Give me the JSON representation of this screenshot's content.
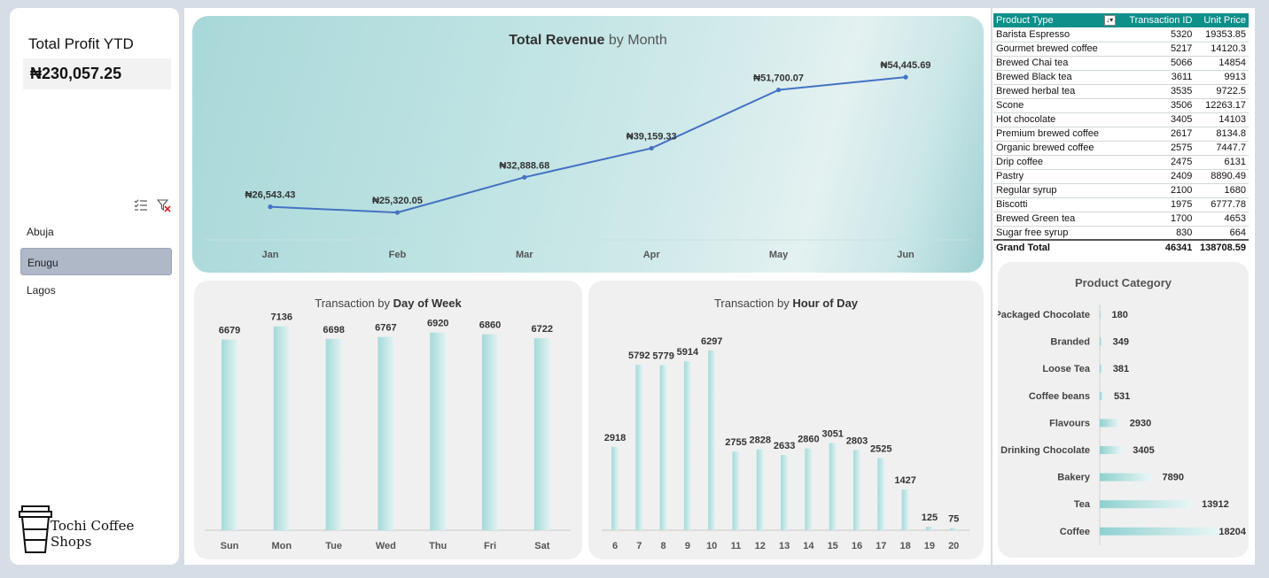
{
  "kpi": {
    "profit_label": "Total Profit YTD",
    "profit_value": "₦230,057.25"
  },
  "slicer": {
    "items": [
      {
        "label": "Abuja",
        "selected": false
      },
      {
        "label": "Enugu",
        "selected": true
      },
      {
        "label": "Lagos",
        "selected": false
      }
    ],
    "multi_select_icon": "multi-select-icon",
    "clear_filter_icon": "clear-filter-icon"
  },
  "brand": {
    "name": "Tochi Coffee Shops",
    "icon": "coffee-cup-icon"
  },
  "colors": {
    "line": "#4472c4",
    "bar": "#a9dcdc",
    "header": "#0f8f8a"
  },
  "chart_data": [
    {
      "type": "line",
      "title_bold": "Total Revenue",
      "title_rest": " by Month",
      "categories": [
        "Jan",
        "Feb",
        "Mar",
        "Apr",
        "May",
        "Jun"
      ],
      "values": [
        26543.43,
        25320.05,
        32888.68,
        39159.33,
        51700.07,
        54445.69
      ],
      "labels": [
        "₦26,543.43",
        "₦25,320.05",
        "₦32,888.68",
        "₦39,159.33",
        "₦51,700.07",
        "₦54,445.69"
      ]
    },
    {
      "type": "bar",
      "title_rest": "Transaction by ",
      "title_bold": "Day of Week",
      "categories": [
        "Sun",
        "Mon",
        "Tue",
        "Wed",
        "Thu",
        "Fri",
        "Sat"
      ],
      "values": [
        6679,
        7136,
        6698,
        6767,
        6920,
        6860,
        6722
      ]
    },
    {
      "type": "bar",
      "title_rest": "Transaction by ",
      "title_bold": "Hour of Day",
      "categories": [
        "6",
        "7",
        "8",
        "9",
        "10",
        "11",
        "12",
        "13",
        "14",
        "15",
        "16",
        "17",
        "18",
        "19",
        "20"
      ],
      "values": [
        2918,
        5792,
        5779,
        5914,
        6297,
        2755,
        2828,
        2633,
        2860,
        3051,
        2803,
        2525,
        1427,
        125,
        75
      ]
    },
    {
      "type": "bar",
      "orientation": "horizontal",
      "title": "Product Category",
      "categories": [
        "Packaged Chocolate",
        "Branded",
        "Loose Tea",
        "Coffee beans",
        "Flavours",
        "Drinking Chocolate",
        "Bakery",
        "Tea",
        "Coffee"
      ],
      "values": [
        180,
        349,
        381,
        531,
        2930,
        3405,
        7890,
        13912,
        18204
      ]
    }
  ],
  "pivot": {
    "headers": [
      "Product Type",
      "Transaction ID",
      "Unit Price"
    ],
    "rows": [
      [
        "Barista Espresso",
        "5320",
        "19353.85"
      ],
      [
        "Gourmet brewed coffee",
        "5217",
        "14120.3"
      ],
      [
        "Brewed Chai tea",
        "5066",
        "14854"
      ],
      [
        "Brewed Black tea",
        "3611",
        "9913"
      ],
      [
        "Brewed herbal tea",
        "3535",
        "9722.5"
      ],
      [
        "Scone",
        "3506",
        "12263.17"
      ],
      [
        "Hot chocolate",
        "3405",
        "14103"
      ],
      [
        "Premium brewed coffee",
        "2617",
        "8134.8"
      ],
      [
        "Organic brewed coffee",
        "2575",
        "7447.7"
      ],
      [
        "Drip coffee",
        "2475",
        "6131"
      ],
      [
        "Pastry",
        "2409",
        "8890.49"
      ],
      [
        "Regular syrup",
        "2100",
        "1680"
      ],
      [
        "Biscotti",
        "1975",
        "6777.78"
      ],
      [
        "Brewed Green tea",
        "1700",
        "4653"
      ],
      [
        "Sugar free syrup",
        "830",
        "664"
      ]
    ],
    "total": [
      "Grand Total",
      "46341",
      "138708.59"
    ]
  }
}
